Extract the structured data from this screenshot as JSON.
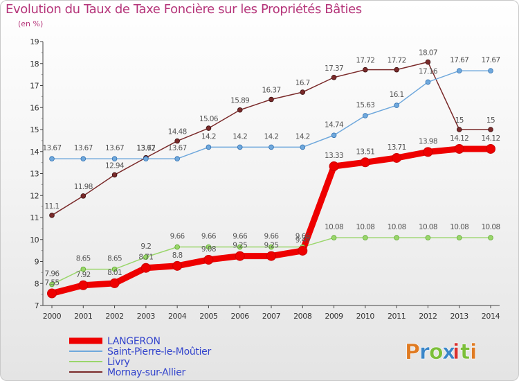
{
  "header": {
    "title": "Evolution du Taux de Taxe Foncière sur les Propriétés Bâties",
    "subtitle": "(en %)"
  },
  "logo": {
    "text": "Proxiti",
    "colors": [
      "#e07b22",
      "#3a86c8",
      "#7cbf3a",
      "#3a86c8",
      "#d8322f",
      "#7cbf3a",
      "#e07b22"
    ]
  },
  "chart_data": {
    "type": "line",
    "title": "Evolution du Taux de Taxe Foncière sur les Propriétés Bâties",
    "subtitle": "(en %)",
    "xlabel": "",
    "ylabel": "",
    "x": [
      2000,
      2001,
      2002,
      2003,
      2004,
      2005,
      2006,
      2007,
      2008,
      2009,
      2010,
      2011,
      2012,
      2013,
      2014
    ],
    "ylim": [
      7,
      19
    ],
    "yticks": [
      7,
      8,
      9,
      10,
      11,
      12,
      13,
      14,
      15,
      16,
      17,
      18,
      19
    ],
    "grid": false,
    "legend_position": "bottom-left",
    "series": [
      {
        "name": "LANGERON",
        "color": "#ee0000",
        "values": [
          7.55,
          7.92,
          8.01,
          8.71,
          8.8,
          9.08,
          9.25,
          9.25,
          9.49,
          13.33,
          13.51,
          13.71,
          13.98,
          14.12,
          14.12
        ],
        "labels": [
          "7.55",
          "7.92",
          "8.01",
          "8.71",
          "8.8",
          "9.08",
          "9.25",
          "9.25",
          "9.49",
          "13.33",
          "13.51",
          "13.71",
          "13.98",
          "14.12",
          "14.12"
        ]
      },
      {
        "name": "Saint-Pierre-le-Moûtier",
        "color": "#6fa8dc",
        "values": [
          13.67,
          13.67,
          13.67,
          13.67,
          13.67,
          14.2,
          14.2,
          14.2,
          14.2,
          14.74,
          15.63,
          16.1,
          17.16,
          17.67,
          17.67
        ],
        "labels": [
          "13.67",
          "13.67",
          "13.67",
          "13.67",
          "13.67",
          "14.2",
          "14.2",
          "14.2",
          "14.2",
          "14.74",
          "15.63",
          "16.1",
          "17.16",
          "17.67",
          "17.67"
        ]
      },
      {
        "name": "Livry",
        "color": "#9ad66b",
        "values": [
          7.96,
          8.65,
          8.65,
          9.2,
          9.66,
          9.66,
          9.66,
          9.66,
          9.66,
          10.08,
          10.08,
          10.08,
          10.08,
          10.08,
          10.08
        ],
        "labels": [
          "7.96",
          "8.65",
          "8.65",
          "9.2",
          "9.66",
          "9.66",
          "9.66",
          "9.66",
          "9.66",
          "10.08",
          "10.08",
          "10.08",
          "10.08",
          "10.08",
          "10.08"
        ]
      },
      {
        "name": "Mornay-sur-Allier",
        "color": "#7a2a2a",
        "values": [
          11.1,
          11.98,
          12.94,
          13.72,
          14.48,
          15.06,
          15.89,
          16.37,
          16.7,
          17.37,
          17.72,
          17.72,
          18.07,
          15,
          15
        ],
        "labels": [
          "11.1",
          "11.98",
          "12.94",
          "13.72",
          "14.48",
          "15.06",
          "15.89",
          "16.37",
          "16.7",
          "17.37",
          "17.72",
          "17.72",
          "18.07",
          "15",
          "15"
        ]
      }
    ]
  }
}
